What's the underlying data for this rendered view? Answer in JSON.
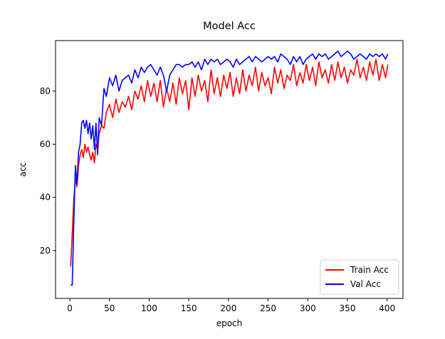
{
  "chart_data": {
    "type": "line",
    "title": "Model Acc",
    "xlabel": "epoch",
    "ylabel": "acc",
    "xlim": [
      -18,
      420
    ],
    "ylim": [
      2,
      99
    ],
    "xticks": [
      0,
      50,
      100,
      150,
      200,
      250,
      300,
      350,
      400
    ],
    "yticks": [
      20,
      40,
      60,
      80
    ],
    "grid": false,
    "legend_position": "lower-right",
    "series": [
      {
        "name": "Train Acc",
        "color": "#ff0000",
        "x": [
          1,
          3,
          5,
          7,
          9,
          11,
          13,
          15,
          17,
          19,
          21,
          23,
          25,
          27,
          29,
          31,
          33,
          35,
          37,
          40,
          43,
          46,
          50,
          54,
          58,
          62,
          66,
          70,
          74,
          78,
          82,
          86,
          90,
          94,
          98,
          102,
          106,
          110,
          114,
          118,
          122,
          126,
          130,
          134,
          138,
          142,
          146,
          150,
          154,
          158,
          162,
          166,
          170,
          174,
          178,
          182,
          186,
          190,
          194,
          198,
          202,
          206,
          210,
          214,
          218,
          222,
          226,
          230,
          234,
          238,
          242,
          246,
          250,
          254,
          258,
          262,
          266,
          270,
          274,
          278,
          282,
          286,
          290,
          294,
          298,
          302,
          306,
          310,
          314,
          318,
          322,
          326,
          330,
          334,
          338,
          342,
          346,
          350,
          354,
          358,
          362,
          366,
          370,
          374,
          378,
          382,
          386,
          390,
          394,
          398,
          401
        ],
        "values": [
          14,
          26,
          39,
          47,
          44,
          52,
          56,
          58,
          55,
          60,
          57,
          59,
          56,
          54,
          57,
          53,
          60,
          58,
          64,
          67,
          66,
          72,
          75,
          70,
          77,
          72,
          76,
          74,
          78,
          73,
          80,
          77,
          82,
          76,
          84,
          78,
          83,
          76,
          84,
          74,
          81,
          76,
          83,
          75,
          85,
          79,
          84,
          73,
          85,
          78,
          86,
          80,
          84,
          76,
          88,
          79,
          85,
          78,
          86,
          81,
          87,
          78,
          85,
          79,
          88,
          80,
          86,
          82,
          89,
          80,
          87,
          82,
          85,
          79,
          89,
          83,
          88,
          81,
          86,
          84,
          90,
          82,
          87,
          83,
          90,
          84,
          89,
          82,
          91,
          85,
          88,
          83,
          90,
          84,
          91,
          85,
          89,
          83,
          88,
          86,
          92,
          85,
          89,
          84,
          91,
          86,
          92,
          84,
          90,
          85,
          90
        ]
      },
      {
        "name": "Val Acc",
        "color": "#0000ff",
        "x": [
          1,
          3,
          5,
          7,
          9,
          11,
          13,
          15,
          17,
          19,
          21,
          23,
          25,
          27,
          29,
          31,
          33,
          35,
          37,
          40,
          43,
          46,
          50,
          54,
          58,
          62,
          66,
          70,
          74,
          78,
          82,
          86,
          90,
          94,
          98,
          102,
          106,
          110,
          114,
          118,
          122,
          126,
          130,
          134,
          138,
          142,
          146,
          150,
          154,
          158,
          162,
          166,
          170,
          174,
          178,
          182,
          186,
          190,
          194,
          198,
          202,
          206,
          210,
          214,
          218,
          222,
          226,
          230,
          234,
          238,
          242,
          246,
          250,
          254,
          258,
          262,
          266,
          270,
          274,
          278,
          282,
          286,
          290,
          294,
          298,
          302,
          306,
          310,
          314,
          318,
          322,
          326,
          330,
          334,
          338,
          342,
          346,
          350,
          354,
          358,
          362,
          366,
          370,
          374,
          378,
          382,
          386,
          390,
          394,
          398,
          401
        ],
        "values": [
          7,
          7,
          30,
          52,
          45,
          57,
          60,
          68,
          69,
          66,
          69,
          64,
          68,
          62,
          67,
          58,
          68,
          56,
          70,
          67,
          81,
          78,
          85,
          82,
          86,
          80,
          84,
          85,
          86,
          83,
          88,
          85,
          89,
          87,
          89,
          90,
          88,
          86,
          89,
          86,
          80,
          86,
          88,
          90,
          90,
          89,
          90,
          90,
          91,
          89,
          91,
          88,
          92,
          90,
          92,
          91,
          92,
          90,
          91,
          92,
          91,
          89,
          92,
          90,
          91,
          92,
          93,
          91,
          93,
          92,
          91,
          92,
          93,
          92,
          93,
          91,
          94,
          93,
          92,
          90,
          93,
          91,
          93,
          90,
          92,
          93,
          94,
          92,
          94,
          93,
          94,
          92,
          93,
          94,
          95,
          93,
          94,
          95,
          94,
          92,
          93,
          94,
          93,
          92,
          94,
          93,
          94,
          93,
          94,
          92,
          94
        ]
      }
    ]
  }
}
